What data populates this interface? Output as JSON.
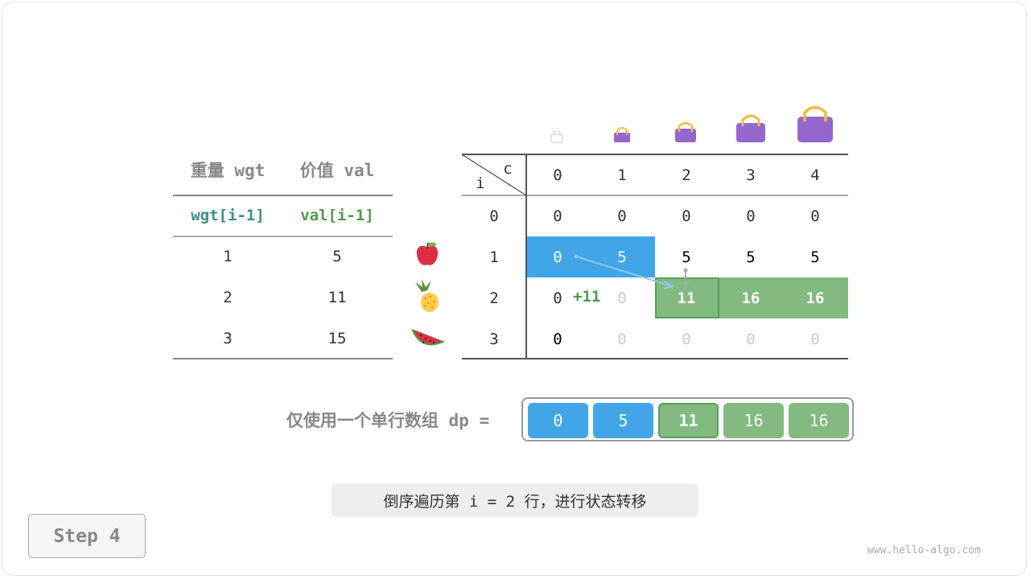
{
  "colors": {
    "blue": "#42a5e8",
    "green": "#82ba7f",
    "green_dark": "#5a9e57",
    "teal": "#3a8f86",
    "label_gray": "#888888",
    "faded": "#cccccc",
    "bag": "#9367cb",
    "bag_handle": "#f5b942"
  },
  "items_table": {
    "headers": [
      "重量 wgt",
      "价值 val"
    ],
    "subheaders": [
      "wgt[i-1]",
      "val[i-1]"
    ],
    "rows": [
      {
        "wgt": "1",
        "val": "5",
        "icon": "apple-icon"
      },
      {
        "wgt": "2",
        "val": "11",
        "icon": "pineapple-icon"
      },
      {
        "wgt": "3",
        "val": "15",
        "icon": "watermelon-icon"
      }
    ]
  },
  "dp_table": {
    "corner_i": "i",
    "corner_c": "c",
    "col_headers": [
      "0",
      "1",
      "2",
      "3",
      "4"
    ],
    "row_headers": [
      "0",
      "1",
      "2",
      "3"
    ],
    "rows": [
      [
        "0",
        "0",
        "0",
        "0",
        "0"
      ],
      [
        "0",
        "5",
        "5",
        "5",
        "5"
      ],
      [
        "0",
        "0",
        "11",
        "16",
        "16"
      ],
      [
        "0",
        "0",
        "0",
        "0",
        "0"
      ]
    ],
    "add_annotation": "+11"
  },
  "dp_array": {
    "label": "仅使用一个单行数组 dp =",
    "values": [
      "0",
      "5",
      "11",
      "16",
      "16"
    ]
  },
  "caption": "倒序遍历第 i = 2 行，进行状态转移",
  "step_button": "Step 4",
  "watermark": "www.hello-algo.com"
}
